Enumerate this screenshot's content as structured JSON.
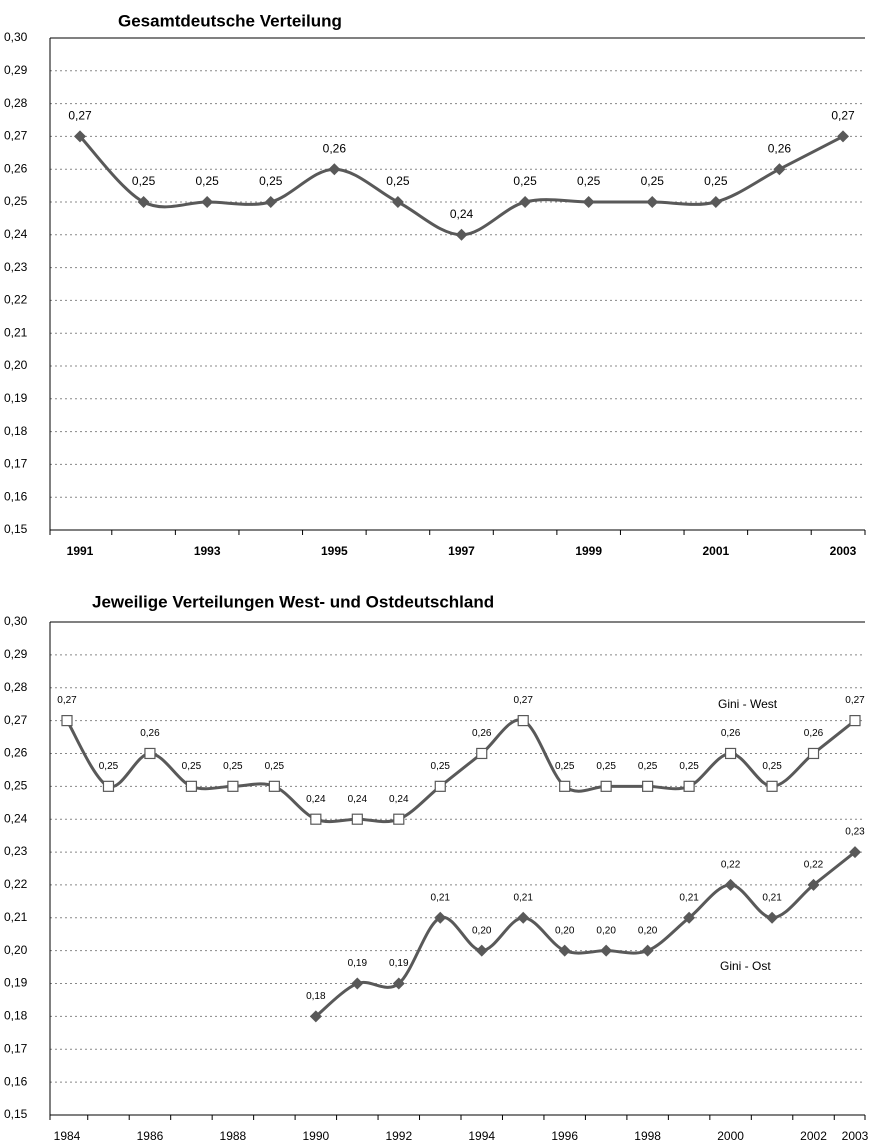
{
  "chart_data": [
    {
      "type": "line",
      "title": "Gesamtdeutsche Verteilung",
      "categories": [
        "1991",
        null,
        "1993",
        null,
        "1995",
        null,
        "1997",
        null,
        "1999",
        null,
        "2001",
        null,
        "2003"
      ],
      "series": [
        {
          "color": "#595959",
          "marker": "diamond",
          "values": [
            0.27,
            0.25,
            0.25,
            0.25,
            0.26,
            0.25,
            0.24,
            0.25,
            0.25,
            0.25,
            0.25,
            0.26,
            0.27
          ],
          "value_labels": [
            "0,27",
            "0,25",
            "0,25",
            "0,25",
            "0,26",
            "0,25",
            "0,24",
            "0,25",
            "0,25",
            "0,25",
            "0,25",
            "0,26",
            "0,27"
          ]
        }
      ],
      "ylim": [
        0.15,
        0.3
      ],
      "yticks": [
        {
          "value": 0.15,
          "label": "0,15"
        },
        {
          "value": 0.16,
          "label": "0,16"
        },
        {
          "value": 0.17,
          "label": "0,17"
        },
        {
          "value": 0.18,
          "label": "0,18"
        },
        {
          "value": 0.19,
          "label": "0,19"
        },
        {
          "value": 0.2,
          "label": "0,20"
        },
        {
          "value": 0.21,
          "label": "0,21"
        },
        {
          "value": 0.22,
          "label": "0,22"
        },
        {
          "value": 0.23,
          "label": "0,23"
        },
        {
          "value": 0.24,
          "label": "0,24"
        },
        {
          "value": 0.25,
          "label": "0,25"
        },
        {
          "value": 0.26,
          "label": "0,26"
        },
        {
          "value": 0.27,
          "label": "0,27"
        },
        {
          "value": 0.28,
          "label": "0,28"
        },
        {
          "value": 0.29,
          "label": "0,29"
        },
        {
          "value": 0.3,
          "label": "0,30"
        }
      ],
      "grid": true
    },
    {
      "type": "line",
      "title": "Jeweilige Verteilungen West- und Ostdeutschland",
      "categories": [
        "1984",
        null,
        "1986",
        null,
        "1988",
        null,
        "1990",
        null,
        "1992",
        null,
        "1994",
        null,
        "1996",
        null,
        "1998",
        null,
        "2000",
        null,
        "2002",
        "2003"
      ],
      "series": [
        {
          "name": "Gini - West",
          "color": "#595959",
          "marker": "square",
          "values": [
            0.27,
            0.25,
            0.26,
            0.25,
            0.25,
            0.25,
            0.24,
            0.24,
            0.24,
            0.25,
            0.26,
            0.27,
            0.25,
            0.25,
            0.25,
            0.25,
            0.26,
            0.25,
            0.26,
            0.27
          ],
          "value_labels": [
            "0,27",
            "0,25",
            "0,26",
            "0,25",
            "0,25",
            "0,25",
            "0,24",
            "0,24",
            "0,24",
            "0,25",
            "0,26",
            "0,27",
            "0,25",
            "0,25",
            "0,25",
            "0,25",
            "0,26",
            "0,25",
            "0,26",
            "0,27"
          ]
        },
        {
          "name": "Gini - Ost",
          "color": "#595959",
          "marker": "diamond",
          "values": [
            null,
            null,
            null,
            null,
            null,
            null,
            0.18,
            0.19,
            0.19,
            0.21,
            0.2,
            0.21,
            0.2,
            0.2,
            0.2,
            0.21,
            0.22,
            0.21,
            0.22,
            0.23
          ],
          "value_labels": [
            null,
            null,
            null,
            null,
            null,
            null,
            "0,18",
            "0,19",
            "0,19",
            "0,21",
            "0,20",
            "0,21",
            "0,20",
            "0,20",
            "0,20",
            "0,21",
            "0,22",
            "0,21",
            "0,22",
            "0,23"
          ]
        }
      ],
      "ylim": [
        0.15,
        0.3
      ],
      "yticks": [
        {
          "value": 0.15,
          "label": "0,15"
        },
        {
          "value": 0.16,
          "label": "0,16"
        },
        {
          "value": 0.17,
          "label": "0,17"
        },
        {
          "value": 0.18,
          "label": "0,18"
        },
        {
          "value": 0.19,
          "label": "0,19"
        },
        {
          "value": 0.2,
          "label": "0,20"
        },
        {
          "value": 0.21,
          "label": "0,21"
        },
        {
          "value": 0.22,
          "label": "0,22"
        },
        {
          "value": 0.23,
          "label": "0,23"
        },
        {
          "value": 0.24,
          "label": "0,24"
        },
        {
          "value": 0.25,
          "label": "0,25"
        },
        {
          "value": 0.26,
          "label": "0,26"
        },
        {
          "value": 0.27,
          "label": "0,27"
        },
        {
          "value": 0.28,
          "label": "0,28"
        },
        {
          "value": 0.29,
          "label": "0,29"
        },
        {
          "value": 0.3,
          "label": "0,30"
        }
      ],
      "grid": true
    }
  ]
}
